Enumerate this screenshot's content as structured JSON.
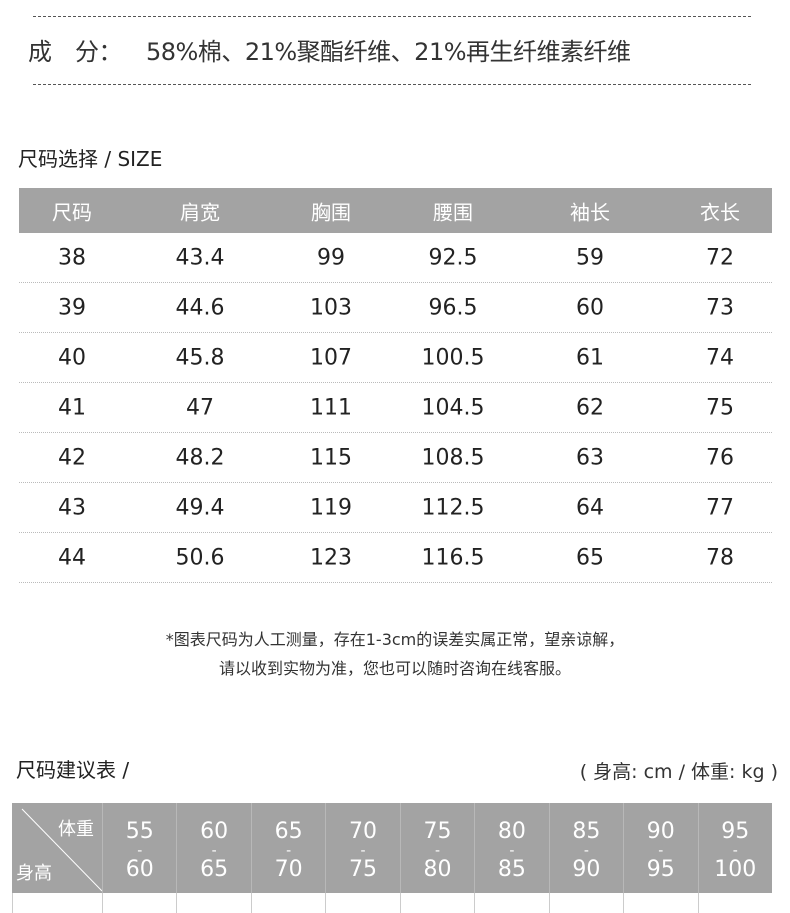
{
  "composition": {
    "label": "成　分：",
    "value": "58%棉、21%聚酯纤维、21%再生纤维素纤维"
  },
  "size_section": {
    "title": "尺码选择 / SIZE",
    "headers": [
      "尺码",
      "肩宽",
      "胸围",
      "腰围",
      "袖长",
      "衣长"
    ],
    "rows": [
      [
        "38",
        "43.4",
        "99",
        "92.5",
        "59",
        "72"
      ],
      [
        "39",
        "44.6",
        "103",
        "96.5",
        "60",
        "73"
      ],
      [
        "40",
        "45.8",
        "107",
        "100.5",
        "61",
        "74"
      ],
      [
        "41",
        "47",
        "111",
        "104.5",
        "62",
        "75"
      ],
      [
        "42",
        "48.2",
        "115",
        "108.5",
        "63",
        "76"
      ],
      [
        "43",
        "49.4",
        "119",
        "112.5",
        "64",
        "77"
      ],
      [
        "44",
        "50.6",
        "123",
        "116.5",
        "65",
        "78"
      ]
    ]
  },
  "note": {
    "line1": "*图表尺码为人工测量，存在1-3cm的误差实属正常，望亲谅解，",
    "line2": "请以收到实物为准，您也可以随时咨询在线客服。"
  },
  "recommend": {
    "title": "尺码建议表 /",
    "unit": "( 身高: cm / 体重: kg )",
    "corner_top": "体重",
    "corner_bottom": "身高",
    "weights": [
      [
        "55",
        "60"
      ],
      [
        "60",
        "65"
      ],
      [
        "65",
        "70"
      ],
      [
        "70",
        "75"
      ],
      [
        "75",
        "80"
      ],
      [
        "80",
        "85"
      ],
      [
        "85",
        "90"
      ],
      [
        "90",
        "95"
      ],
      [
        "95",
        "100"
      ]
    ]
  },
  "colors": {
    "header_bg": "#a3a3a3"
  }
}
